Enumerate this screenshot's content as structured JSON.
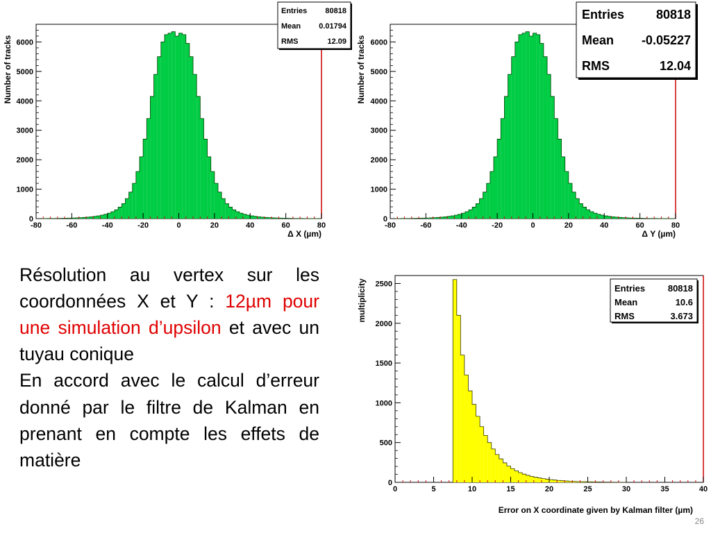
{
  "slide": {
    "page_number": "26",
    "body": {
      "p1_a": "Résolution au vertex sur les coordonnées X et Y : ",
      "p1_red": "12µm pour une simulation d’upsilon",
      "p1_b": " et avec un tuyau conique",
      "arrow": "",
      "p2": " En accord avec le calcul d’erreur donné par le filtre de Kalman en prenant en compte les effets de matière"
    },
    "colors": {
      "highlight": "#e00000",
      "hist_green": "#00cc44",
      "hist_yellow": "#ffff00",
      "frame_red": "#cc0000"
    }
  },
  "chart_data": [
    {
      "type": "bar",
      "subtype": "histogram",
      "xlabel": "Δ X (µm)",
      "ylabel": "Number of tracks",
      "xlim": [
        -80,
        80
      ],
      "ylim": [
        0,
        6600
      ],
      "xticks": [
        "-80",
        "-60",
        "-40",
        "-20",
        "0",
        "20",
        "40",
        "60",
        "80"
      ],
      "yticks": [
        "0",
        "1000",
        "2000",
        "3000",
        "4000",
        "5000",
        "6000"
      ],
      "stats": {
        "entries_label": "Entries",
        "entries": "80818",
        "mean_label": "Mean",
        "mean": "0.01794",
        "rms_label": "RMS",
        "rms": "12.09"
      },
      "bin_width": 2,
      "bin_centers": [
        -79,
        -77,
        -75,
        -73,
        -71,
        -69,
        -67,
        -65,
        -63,
        -61,
        -59,
        -57,
        -55,
        -53,
        -51,
        -49,
        -47,
        -45,
        -43,
        -41,
        -39,
        -37,
        -35,
        -33,
        -31,
        -29,
        -27,
        -25,
        -23,
        -21,
        -19,
        -17,
        -15,
        -13,
        -11,
        -9,
        -7,
        -5,
        -3,
        -1,
        1,
        3,
        5,
        7,
        9,
        11,
        13,
        15,
        17,
        19,
        21,
        23,
        25,
        27,
        29,
        31,
        33,
        35,
        37,
        39,
        41,
        43,
        45,
        47,
        49,
        51,
        53,
        55,
        57,
        59,
        61,
        63,
        65,
        67,
        69,
        71,
        73,
        75,
        77,
        79
      ],
      "values": [
        2,
        2,
        3,
        4,
        5,
        6,
        8,
        10,
        13,
        16,
        20,
        25,
        32,
        40,
        50,
        62,
        77,
        95,
        118,
        147,
        185,
        235,
        300,
        390,
        510,
        680,
        900,
        1200,
        1600,
        2100,
        2700,
        3400,
        4150,
        4900,
        5500,
        6000,
        6250,
        6300,
        6350,
        6200,
        6300,
        6250,
        5950,
        5500,
        4900,
        4150,
        3400,
        2700,
        2100,
        1600,
        1200,
        900,
        680,
        510,
        390,
        300,
        235,
        185,
        147,
        118,
        95,
        77,
        62,
        50,
        40,
        32,
        25,
        20,
        16,
        13,
        10,
        8,
        6,
        5,
        4,
        3,
        2,
        2,
        2,
        2
      ]
    },
    {
      "type": "bar",
      "subtype": "histogram",
      "xlabel": "Δ Y (µm)",
      "ylabel": "Number of tracks",
      "xlim": [
        -80,
        80
      ],
      "ylim": [
        0,
        6600
      ],
      "xticks": [
        "-80",
        "-60",
        "-40",
        "-20",
        "0",
        "20",
        "40",
        "60",
        "80"
      ],
      "yticks": [
        "0",
        "1000",
        "2000",
        "3000",
        "4000",
        "5000",
        "6000"
      ],
      "stats": {
        "entries_label": "Entries",
        "entries": "80818",
        "mean_label": "Mean",
        "mean": "-0.05227",
        "rms_label": "RMS",
        "rms": "12.04"
      },
      "bin_width": 2,
      "bin_centers": [
        -79,
        -77,
        -75,
        -73,
        -71,
        -69,
        -67,
        -65,
        -63,
        -61,
        -59,
        -57,
        -55,
        -53,
        -51,
        -49,
        -47,
        -45,
        -43,
        -41,
        -39,
        -37,
        -35,
        -33,
        -31,
        -29,
        -27,
        -25,
        -23,
        -21,
        -19,
        -17,
        -15,
        -13,
        -11,
        -9,
        -7,
        -5,
        -3,
        -1,
        1,
        3,
        5,
        7,
        9,
        11,
        13,
        15,
        17,
        19,
        21,
        23,
        25,
        27,
        29,
        31,
        33,
        35,
        37,
        39,
        41,
        43,
        45,
        47,
        49,
        51,
        53,
        55,
        57,
        59,
        61,
        63,
        65,
        67,
        69,
        71,
        73,
        75,
        77,
        79
      ],
      "values": [
        2,
        2,
        3,
        4,
        5,
        6,
        8,
        10,
        13,
        16,
        20,
        25,
        32,
        40,
        50,
        62,
        77,
        95,
        118,
        147,
        185,
        235,
        300,
        390,
        510,
        680,
        900,
        1200,
        1600,
        2100,
        2700,
        3400,
        4150,
        4900,
        5500,
        6000,
        6250,
        6300,
        6350,
        6200,
        6300,
        6250,
        5950,
        5500,
        4900,
        4150,
        3400,
        2700,
        2100,
        1600,
        1200,
        900,
        680,
        510,
        390,
        300,
        235,
        185,
        147,
        118,
        95,
        77,
        62,
        50,
        40,
        32,
        25,
        20,
        16,
        13,
        10,
        8,
        6,
        5,
        4,
        3,
        2,
        2,
        2,
        2
      ]
    },
    {
      "type": "bar",
      "subtype": "histogram",
      "xlabel": "Error on X coordinate given by Kalman filter (µm)",
      "ylabel": "multiplicity",
      "xlim": [
        0,
        40
      ],
      "ylim": [
        0,
        2600
      ],
      "xticks": [
        "0",
        "5",
        "10",
        "15",
        "20",
        "25",
        "30",
        "35",
        "40"
      ],
      "yticks": [
        "0",
        "500",
        "1000",
        "1500",
        "2000",
        "2500"
      ],
      "stats": {
        "entries_label": "Entries",
        "entries": "80818",
        "mean_label": "Mean",
        "mean": "10.6",
        "rms_label": "RMS",
        "rms": "3.673"
      },
      "bin_width": 0.5,
      "bin_centers": [
        7.75,
        8.25,
        8.75,
        9.25,
        9.75,
        10.25,
        10.75,
        11.25,
        11.75,
        12.25,
        12.75,
        13.25,
        13.75,
        14.25,
        14.75,
        15.25,
        15.75,
        16.25,
        16.75,
        17.25,
        17.75,
        18.25,
        18.75,
        19.25,
        19.75,
        20.25,
        20.75,
        21.25,
        21.75,
        22.25,
        22.75,
        23.25,
        23.75,
        24.25,
        24.75,
        25.25,
        25.75,
        26.25,
        26.75,
        27.25,
        27.75,
        28.25,
        28.75,
        29.25,
        29.75
      ],
      "values": [
        2550,
        2100,
        1600,
        1350,
        1150,
        980,
        830,
        700,
        590,
        500,
        420,
        350,
        295,
        245,
        205,
        172,
        145,
        122,
        103,
        88,
        75,
        64,
        55,
        47,
        40,
        34,
        29,
        24,
        20,
        17,
        14,
        12,
        10,
        9,
        8,
        7,
        6,
        5,
        4,
        3,
        3,
        2,
        2,
        1,
        1
      ]
    }
  ]
}
